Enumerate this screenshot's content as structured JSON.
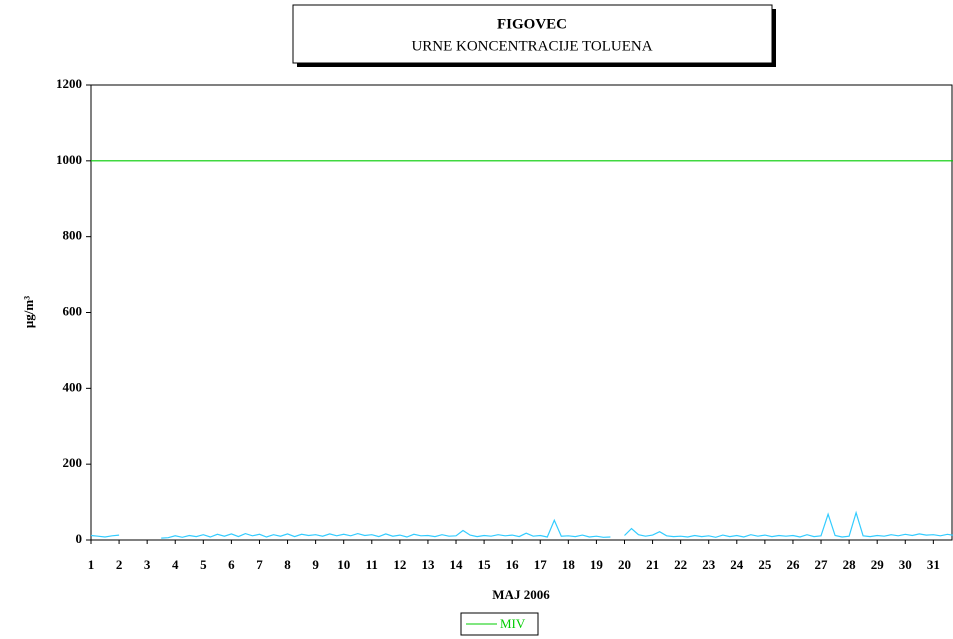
{
  "chart_data": {
    "type": "line",
    "title": "FIGOVEC",
    "subtitle": "URNE KONCENTRACIJE TOLUENA",
    "x_label": "MAJ  2006",
    "y_label": "μg/m³",
    "x": [
      1,
      1.25,
      1.5,
      1.75,
      2,
      2.25,
      2.5,
      2.75,
      3,
      3.25,
      3.5,
      3.75,
      4,
      4.25,
      4.5,
      4.75,
      5,
      5.25,
      5.5,
      5.75,
      6,
      6.25,
      6.5,
      6.75,
      7,
      7.25,
      7.5,
      7.75,
      8,
      8.25,
      8.5,
      8.75,
      9,
      9.25,
      9.5,
      9.75,
      10,
      10.25,
      10.5,
      10.75,
      11,
      11.25,
      11.5,
      11.75,
      12,
      12.25,
      12.5,
      12.75,
      13,
      13.25,
      13.5,
      13.75,
      14,
      14.25,
      14.5,
      14.75,
      15,
      15.25,
      15.5,
      15.75,
      16,
      16.25,
      16.5,
      16.75,
      17,
      17.25,
      17.5,
      17.75,
      18,
      18.25,
      18.5,
      18.75,
      19,
      19.25,
      19.5,
      19.75,
      20,
      20.25,
      20.5,
      20.75,
      21,
      21.25,
      21.5,
      21.75,
      22,
      22.25,
      22.5,
      22.75,
      23,
      23.25,
      23.5,
      23.75,
      24,
      24.25,
      24.5,
      24.75,
      25,
      25.25,
      25.5,
      25.75,
      26,
      26.25,
      26.5,
      26.75,
      27,
      27.25,
      27.5,
      27.75,
      28,
      28.25,
      28.5,
      28.75,
      29,
      29.25,
      29.5,
      29.75,
      30,
      30.25,
      30.5,
      30.75,
      31,
      31.25,
      31.5,
      31.75
    ],
    "series": [
      {
        "color": "#33ccff",
        "values": [
          12,
          10,
          8,
          11,
          13,
          null,
          null,
          null,
          null,
          null,
          5,
          6,
          11,
          7,
          12,
          9,
          14,
          8,
          15,
          10,
          16,
          9,
          17,
          11,
          15,
          8,
          14,
          10,
          16,
          9,
          15,
          12,
          14,
          10,
          16,
          11,
          15,
          11,
          17,
          12,
          14,
          9,
          16,
          10,
          13,
          8,
          15,
          11,
          12,
          9,
          14,
          10,
          11,
          25,
          13,
          9,
          12,
          10,
          14,
          11,
          13,
          9,
          18,
          10,
          12,
          8,
          52,
          10,
          11,
          9,
          13,
          8,
          10,
          7,
          8,
          null,
          12,
          30,
          14,
          10,
          13,
          22,
          11,
          9,
          10,
          8,
          12,
          9,
          11,
          7,
          13,
          9,
          12,
          8,
          14,
          10,
          13,
          9,
          12,
          10,
          12,
          8,
          14,
          9,
          11,
          68,
          12,
          8,
          10,
          72,
          11,
          9,
          12,
          10,
          14,
          11,
          15,
          12,
          16,
          13,
          14,
          11,
          15,
          12
        ]
      }
    ],
    "reference_lines": [
      {
        "name": "MIV",
        "value": 1000,
        "color": "#00cc00"
      }
    ],
    "xlim": [
      1,
      31.7
    ],
    "xticks": [
      1,
      2,
      3,
      4,
      5,
      6,
      7,
      8,
      9,
      10,
      11,
      12,
      13,
      14,
      15,
      16,
      17,
      18,
      19,
      20,
      21,
      22,
      23,
      24,
      25,
      26,
      27,
      28,
      29,
      30,
      31
    ],
    "ylim": [
      0,
      1200
    ],
    "yticks": [
      0,
      200,
      400,
      600,
      800,
      1000,
      1200
    ],
    "legend": "bottom"
  }
}
